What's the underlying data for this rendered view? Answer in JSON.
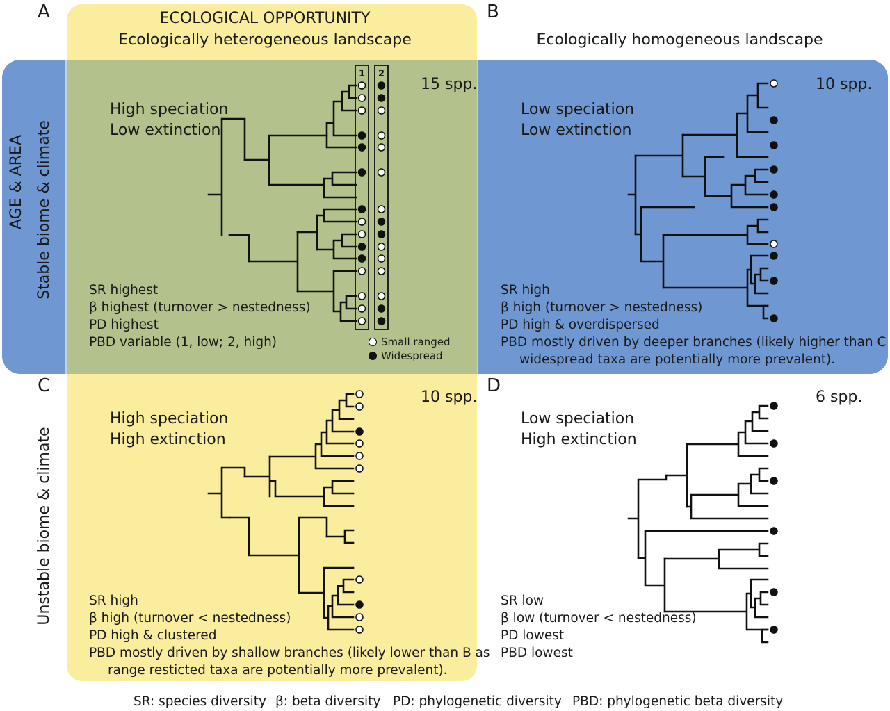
{
  "colors": {
    "yellow": "#fbed9e",
    "blue": "#6f97d1",
    "overlap": "#b3c28d",
    "line": "#111111"
  },
  "headers": {
    "eco_title": "ECOLOGICAL OPPORTUNITY",
    "hetero": "Ecologically heterogeneous landscape",
    "homo": "Ecologically homogeneous landscape"
  },
  "side_labels": {
    "age_area": "AGE & AREA",
    "stable": "Stable biome & climate",
    "unstable": "Unstable biome & climate"
  },
  "panels": {
    "A": {
      "letter": "A",
      "spp": "15 spp.",
      "process": [
        "High speciation",
        "Low extinction"
      ],
      "stats": [
        "SR highest",
        "β highest (turnover > nestedness)",
        "PD highest",
        "PBD variable (1, low; 2, high)"
      ]
    },
    "B": {
      "letter": "B",
      "spp": "10 spp.",
      "process": [
        "Low speciation",
        "Low extinction"
      ],
      "stats": [
        "SR high",
        "β high (turnover > nestedness)",
        "PD high & overdispersed",
        "PBD mostly driven by deeper branches (likely higher than C as",
        "widespread taxa are potentially more prevalent)."
      ]
    },
    "C": {
      "letter": "C",
      "spp": "10 spp.",
      "process": [
        "High speciation",
        "High extinction"
      ],
      "stats": [
        "SR high",
        "β high (turnover < nestedness)",
        "PD high & clustered",
        "PBD mostly driven by shallow branches (likely lower than B as",
        "range resticted taxa are potentially more prevalent)."
      ]
    },
    "D": {
      "letter": "D",
      "spp": "6 spp.",
      "process": [
        "Low speciation",
        "High extinction"
      ],
      "stats": [
        "SR low",
        "β low (turnover < nestedness)",
        "PD lowest",
        "PBD lowest"
      ]
    }
  },
  "columns": {
    "col1": "1",
    "col2": "2"
  },
  "legend": {
    "small": "Small ranged",
    "wide": "Widespread"
  },
  "footer": {
    "sr": "SR: species diversity",
    "beta": "β: beta diversity",
    "pd": "PD: phylogenetic diversity",
    "pbd": "PBD: phylogenetic beta diversity"
  }
}
